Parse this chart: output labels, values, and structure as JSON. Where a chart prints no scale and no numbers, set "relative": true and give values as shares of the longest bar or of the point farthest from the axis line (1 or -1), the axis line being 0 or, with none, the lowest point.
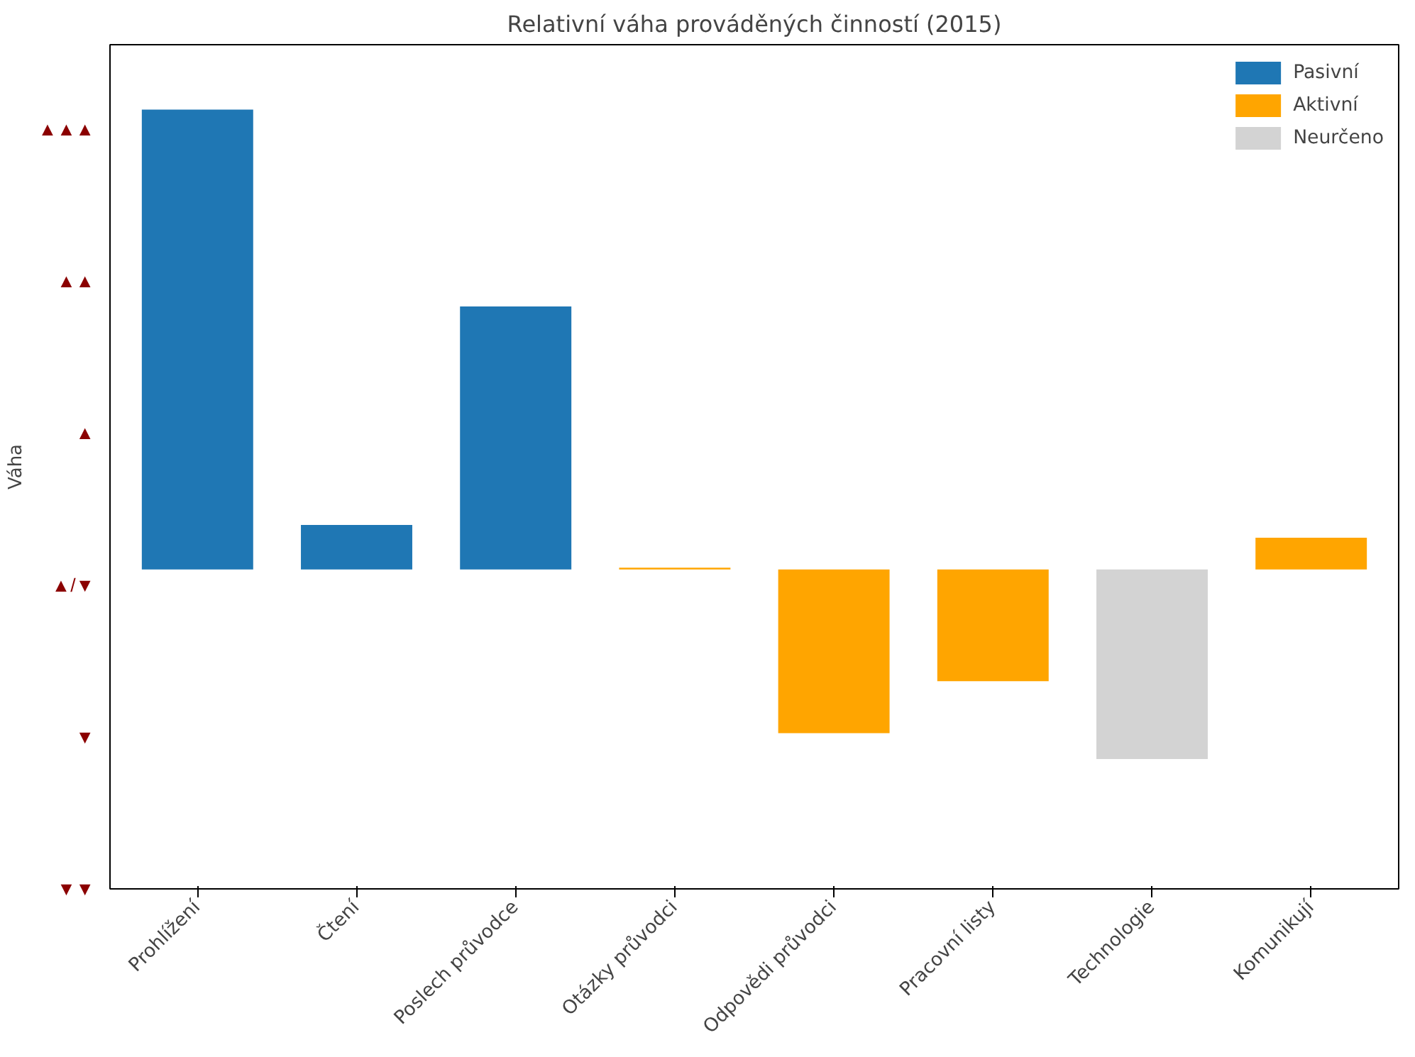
{
  "chart_data": {
    "type": "bar",
    "title": "Relativní váha prováděných činností (2015)",
    "ylabel": "Váha",
    "relative": true,
    "categories": [
      "Prohlížení",
      "Čtení",
      "Poslech průvodce",
      "Otázky průvodci",
      "Odpovědi průvodci",
      "Pracovní listy",
      "Technologie",
      "Komunikují"
    ],
    "series": [
      {
        "name": "Pasivní",
        "color": "#1f77b4",
        "values": [
          1,
          0.097,
          0.572,
          null,
          null,
          null,
          null,
          null
        ]
      },
      {
        "name": "Aktivní",
        "color": "#ffa500",
        "values": [
          null,
          null,
          null,
          0.004,
          -0.356,
          -0.243,
          null,
          0.069
        ]
      },
      {
        "name": "Neurčeno",
        "color": "#d3d3d3",
        "values": [
          null,
          null,
          null,
          null,
          null,
          null,
          -0.412,
          null
        ]
      }
    ],
    "annotations": [
      "▲▲▲",
      "▲▲",
      "▲",
      "▲/▼",
      "▼",
      "▼▼"
    ],
    "legend": "top right",
    "grid": false
  }
}
